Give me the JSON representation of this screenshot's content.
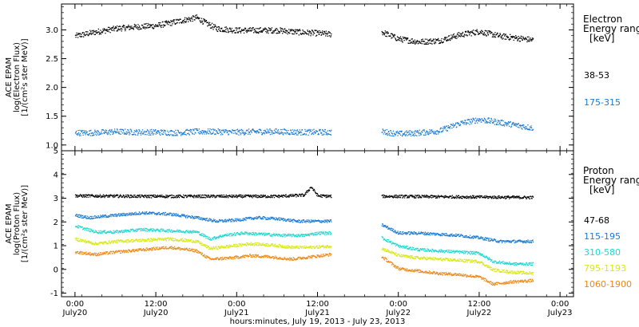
{
  "chart_data": [
    {
      "type": "scatter",
      "panel": "electron",
      "ylabel_lines": [
        "ACE EPAM",
        "log(Electron Flux)",
        "[1/(cm²s ster MeV)]"
      ],
      "ylim": [
        0.9,
        3.45
      ],
      "yticks": [
        1.0,
        1.5,
        2.0,
        2.5,
        3.0
      ],
      "ytick_labels": [
        "1.0",
        "1.5",
        "2.0",
        "2.5",
        "3.0"
      ],
      "legend_title_lines": [
        "Electron",
        "Energy ranges",
        "[keV]"
      ],
      "series": [
        {
          "name": "38-53",
          "color": "#000000",
          "segments": [
            [
              [
                0,
                2.9
              ],
              [
                3,
                2.97
              ],
              [
                6,
                3.03
              ],
              [
                9,
                3.06
              ],
              [
                12,
                3.08
              ],
              [
                15,
                3.15
              ],
              [
                18,
                3.22
              ],
              [
                19.5,
                3.12
              ],
              [
                21,
                3.03
              ],
              [
                24,
                3.0
              ],
              [
                27,
                3.0
              ],
              [
                30,
                3.0
              ],
              [
                33,
                2.97
              ],
              [
                36,
                2.95
              ],
              [
                38,
                2.93
              ]
            ],
            [
              [
                45.5,
                2.97
              ],
              [
                48,
                2.85
              ],
              [
                51,
                2.8
              ],
              [
                54,
                2.82
              ],
              [
                57,
                2.92
              ],
              [
                60,
                2.98
              ],
              [
                63,
                2.9
              ],
              [
                66,
                2.86
              ],
              [
                68,
                2.83
              ]
            ]
          ]
        },
        {
          "name": "175-315",
          "color": "#1a7ad4",
          "segments": [
            [
              [
                0,
                1.22
              ],
              [
                3,
                1.22
              ],
              [
                6,
                1.24
              ],
              [
                9,
                1.23
              ],
              [
                12,
                1.23
              ],
              [
                15,
                1.22
              ],
              [
                18,
                1.24
              ],
              [
                21,
                1.24
              ],
              [
                24,
                1.23
              ],
              [
                27,
                1.24
              ],
              [
                30,
                1.24
              ],
              [
                33,
                1.23
              ],
              [
                36,
                1.23
              ],
              [
                38,
                1.23
              ]
            ],
            [
              [
                45.5,
                1.24
              ],
              [
                48,
                1.2
              ],
              [
                51,
                1.22
              ],
              [
                54,
                1.25
              ],
              [
                57,
                1.38
              ],
              [
                60,
                1.45
              ],
              [
                63,
                1.4
              ],
              [
                66,
                1.34
              ],
              [
                68,
                1.3
              ]
            ]
          ]
        }
      ]
    },
    {
      "type": "scatter",
      "panel": "proton",
      "ylabel_lines": [
        "ACE EPAM",
        "log(Proton Flux)",
        "[1/(cm²s ster MeV)]"
      ],
      "ylim": [
        -1.15,
        5.0
      ],
      "yticks": [
        -1,
        0,
        1,
        2,
        3,
        4,
        5
      ],
      "ytick_labels": [
        "-1",
        "0",
        "1",
        "2",
        "3",
        "4",
        "5"
      ],
      "legend_title_lines": [
        "Proton",
        "Energy ranges",
        "[keV]"
      ],
      "series": [
        {
          "name": "47-68",
          "color": "#000000",
          "segments": [
            [
              [
                0,
                3.12
              ],
              [
                10,
                3.1
              ],
              [
                20,
                3.1
              ],
              [
                30,
                3.1
              ],
              [
                34,
                3.15
              ],
              [
                35,
                3.5
              ],
              [
                36,
                3.12
              ],
              [
                38,
                3.1
              ]
            ],
            [
              [
                45.5,
                3.1
              ],
              [
                55,
                3.08
              ],
              [
                68,
                3.05
              ]
            ]
          ]
        },
        {
          "name": "115-195",
          "color": "#1a7ad4",
          "segments": [
            [
              [
                0,
                2.3
              ],
              [
                2,
                2.2
              ],
              [
                6,
                2.3
              ],
              [
                10,
                2.4
              ],
              [
                14,
                2.35
              ],
              [
                18,
                2.2
              ],
              [
                21,
                2.05
              ],
              [
                24,
                2.1
              ],
              [
                27,
                2.2
              ],
              [
                30,
                2.15
              ],
              [
                33,
                2.05
              ],
              [
                36,
                2.05
              ],
              [
                38,
                2.05
              ]
            ],
            [
              [
                45.5,
                1.9
              ],
              [
                48,
                1.55
              ],
              [
                51,
                1.55
              ],
              [
                54,
                1.5
              ],
              [
                57,
                1.45
              ],
              [
                60,
                1.35
              ],
              [
                63,
                1.2
              ],
              [
                66,
                1.2
              ],
              [
                68,
                1.2
              ]
            ]
          ]
        },
        {
          "name": "310-580",
          "color": "#20d8d0",
          "segments": [
            [
              [
                0,
                1.85
              ],
              [
                3,
                1.6
              ],
              [
                6,
                1.6
              ],
              [
                10,
                1.7
              ],
              [
                14,
                1.65
              ],
              [
                18,
                1.6
              ],
              [
                20,
                1.3
              ],
              [
                22,
                1.45
              ],
              [
                25,
                1.55
              ],
              [
                28,
                1.5
              ],
              [
                31,
                1.45
              ],
              [
                34,
                1.45
              ],
              [
                36,
                1.55
              ],
              [
                38,
                1.55
              ]
            ],
            [
              [
                45.5,
                1.35
              ],
              [
                48,
                1.0
              ],
              [
                51,
                0.85
              ],
              [
                54,
                0.8
              ],
              [
                57,
                0.75
              ],
              [
                60,
                0.7
              ],
              [
                62,
                0.35
              ],
              [
                65,
                0.25
              ],
              [
                68,
                0.25
              ]
            ]
          ]
        },
        {
          "name": "795-1193",
          "color": "#d7e814",
          "segments": [
            [
              [
                0,
                1.3
              ],
              [
                3,
                1.1
              ],
              [
                6,
                1.2
              ],
              [
                10,
                1.25
              ],
              [
                14,
                1.3
              ],
              [
                18,
                1.2
              ],
              [
                20,
                0.9
              ],
              [
                23,
                1.0
              ],
              [
                26,
                1.1
              ],
              [
                29,
                1.05
              ],
              [
                32,
                0.95
              ],
              [
                35,
                0.95
              ],
              [
                38,
                1.0
              ]
            ],
            [
              [
                45.5,
                0.9
              ],
              [
                48,
                0.6
              ],
              [
                51,
                0.5
              ],
              [
                54,
                0.45
              ],
              [
                57,
                0.4
              ],
              [
                60,
                0.35
              ],
              [
                62,
                0.0
              ],
              [
                65,
                -0.1
              ],
              [
                68,
                -0.15
              ]
            ]
          ]
        },
        {
          "name": "1060-1900",
          "color": "#ec8a18",
          "segments": [
            [
              [
                0,
                0.75
              ],
              [
                3,
                0.65
              ],
              [
                6,
                0.75
              ],
              [
                10,
                0.85
              ],
              [
                14,
                0.95
              ],
              [
                18,
                0.8
              ],
              [
                20,
                0.45
              ],
              [
                23,
                0.5
              ],
              [
                26,
                0.6
              ],
              [
                29,
                0.55
              ],
              [
                32,
                0.45
              ],
              [
                35,
                0.55
              ],
              [
                38,
                0.65
              ]
            ],
            [
              [
                45.5,
                0.55
              ],
              [
                48,
                0.05
              ],
              [
                51,
                -0.05
              ],
              [
                54,
                -0.15
              ],
              [
                57,
                -0.2
              ],
              [
                60,
                -0.3
              ],
              [
                62,
                -0.6
              ],
              [
                65,
                -0.5
              ],
              [
                68,
                -0.45
              ]
            ]
          ]
        }
      ]
    }
  ],
  "x_axis": {
    "range_hours": [
      -2,
      74
    ],
    "ticks_hours": [
      0,
      12,
      24,
      36,
      48,
      60,
      72
    ],
    "tick_time_labels": [
      "0:00",
      "12:00",
      "0:00",
      "12:00",
      "0:00",
      "12:00",
      "0:00"
    ],
    "tick_date_labels": [
      "July20",
      "July20",
      "July21",
      "July21",
      "July22",
      "July22",
      "July23"
    ],
    "title": "hours:minutes, July 19, 2013 - July 23, 2013"
  }
}
